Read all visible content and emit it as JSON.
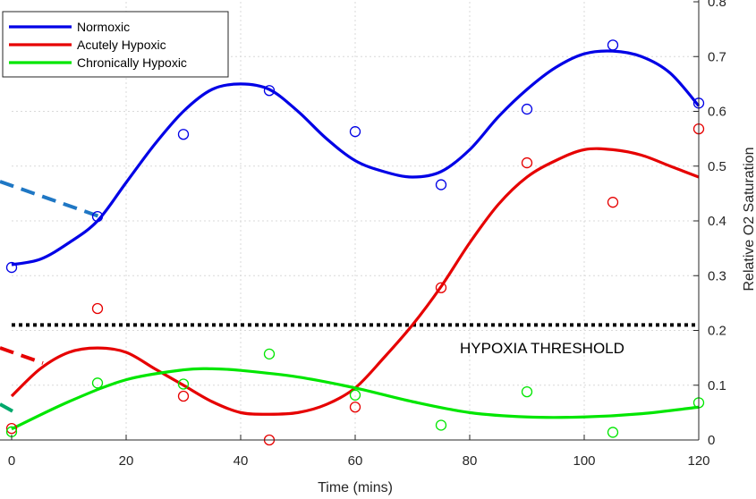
{
  "chart_data": {
    "type": "line",
    "xlabel": "Time (mins)",
    "ylabel": "Relative O2 Saturation",
    "xlim": [
      0,
      120
    ],
    "ylim": [
      0,
      0.8
    ],
    "xticks": [
      "0",
      "20",
      "40",
      "60",
      "80",
      "100",
      "120"
    ],
    "yticks": [
      "0",
      "0.1",
      "0.2",
      "0.3",
      "0.4",
      "0.5",
      "0.6",
      "0.7",
      "0.8"
    ],
    "grid": true,
    "legend_position": "top-left",
    "x": [
      0,
      15,
      30,
      45,
      60,
      75,
      90,
      105,
      120
    ],
    "series": [
      {
        "name": "Normoxic",
        "color": "#0000e6",
        "points": [
          0.315,
          0.408,
          0.558,
          0.638,
          0.563,
          0.466,
          0.604,
          0.721,
          0.615
        ],
        "curve": [
          [
            0,
            0.32
          ],
          [
            5,
            0.33
          ],
          [
            10,
            0.36
          ],
          [
            15,
            0.4
          ],
          [
            20,
            0.47
          ],
          [
            25,
            0.54
          ],
          [
            30,
            0.6
          ],
          [
            35,
            0.64
          ],
          [
            40,
            0.65
          ],
          [
            45,
            0.64
          ],
          [
            50,
            0.6
          ],
          [
            55,
            0.55
          ],
          [
            60,
            0.51
          ],
          [
            65,
            0.49
          ],
          [
            70,
            0.48
          ],
          [
            75,
            0.49
          ],
          [
            80,
            0.53
          ],
          [
            85,
            0.59
          ],
          [
            90,
            0.64
          ],
          [
            95,
            0.68
          ],
          [
            100,
            0.705
          ],
          [
            105,
            0.71
          ],
          [
            110,
            0.7
          ],
          [
            115,
            0.67
          ],
          [
            120,
            0.61
          ]
        ]
      },
      {
        "name": "Acutely Hypoxic",
        "color": "#e60000",
        "points": [
          0.021,
          0.24,
          0.08,
          0.0,
          0.06,
          0.278,
          0.506,
          0.434,
          0.568
        ],
        "curve": [
          [
            0,
            0.08
          ],
          [
            5,
            0.13
          ],
          [
            10,
            0.16
          ],
          [
            15,
            0.168
          ],
          [
            20,
            0.16
          ],
          [
            25,
            0.13
          ],
          [
            30,
            0.1
          ],
          [
            35,
            0.07
          ],
          [
            40,
            0.05
          ],
          [
            45,
            0.047
          ],
          [
            50,
            0.05
          ],
          [
            55,
            0.065
          ],
          [
            60,
            0.095
          ],
          [
            65,
            0.15
          ],
          [
            70,
            0.21
          ],
          [
            75,
            0.28
          ],
          [
            80,
            0.36
          ],
          [
            85,
            0.43
          ],
          [
            90,
            0.48
          ],
          [
            95,
            0.51
          ],
          [
            100,
            0.53
          ],
          [
            105,
            0.53
          ],
          [
            110,
            0.52
          ],
          [
            115,
            0.5
          ],
          [
            120,
            0.48
          ]
        ]
      },
      {
        "name": "Chronically Hypoxic",
        "color": "#00e600",
        "points": [
          0.015,
          0.104,
          0.102,
          0.157,
          0.082,
          0.027,
          0.088,
          0.014,
          0.068
        ],
        "curve": [
          [
            0,
            0.02
          ],
          [
            10,
            0.07
          ],
          [
            20,
            0.11
          ],
          [
            30,
            0.128
          ],
          [
            35,
            0.13
          ],
          [
            40,
            0.127
          ],
          [
            50,
            0.115
          ],
          [
            60,
            0.095
          ],
          [
            70,
            0.07
          ],
          [
            80,
            0.05
          ],
          [
            90,
            0.042
          ],
          [
            100,
            0.042
          ],
          [
            110,
            0.048
          ],
          [
            120,
            0.06
          ]
        ]
      }
    ],
    "annotations": {
      "threshold": {
        "value": 0.21,
        "label": "HYPOXIA THRESHOLD"
      },
      "leader_lines": [
        {
          "color": "#1f77c4"
        },
        {
          "color": "#e60000"
        },
        {
          "color": "#00a86b"
        }
      ]
    }
  }
}
